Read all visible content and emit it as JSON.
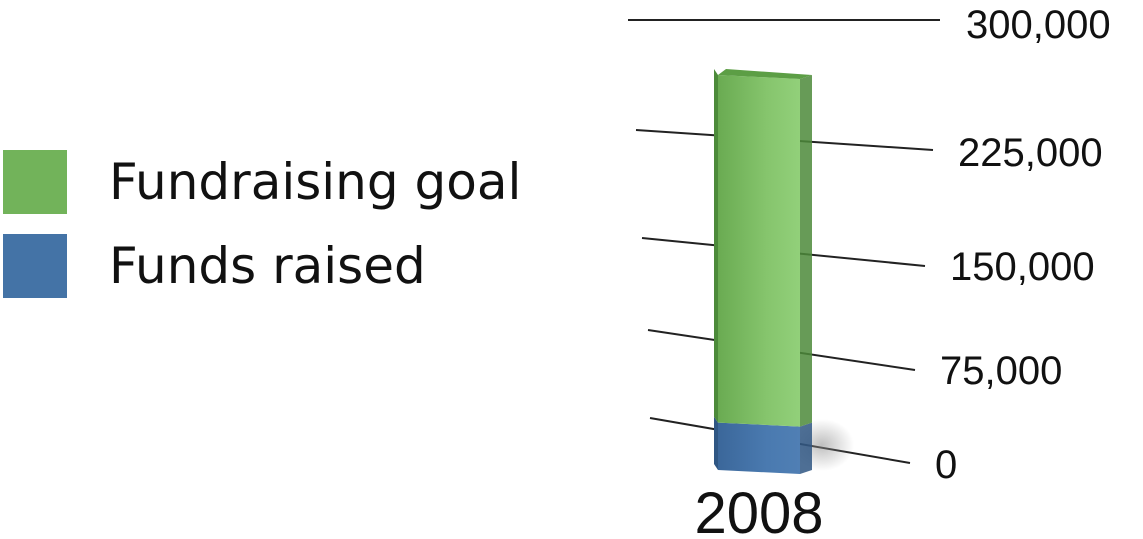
{
  "chart_data": {
    "type": "bar",
    "stacked": true,
    "three_d": true,
    "categories": [
      "2008"
    ],
    "series": [
      {
        "name": "Funds raised",
        "values": [
          30000
        ],
        "color": "#4473A6"
      },
      {
        "name": "Fundraising goal",
        "values": [
          220000
        ],
        "color": "#72B35A"
      }
    ],
    "ylim": [
      0,
      300000
    ],
    "yticks": [
      0,
      75000,
      150000,
      225000,
      300000
    ],
    "ytick_labels": [
      "0",
      "75,000",
      "150,000",
      "225,000",
      "300,000"
    ],
    "gridlines": true,
    "legend": {
      "placement": "left",
      "entries": [
        {
          "label": "Fundraising goal",
          "color": "#72B35A"
        },
        {
          "label": "Funds raised",
          "color": "#4473A6"
        }
      ]
    }
  }
}
